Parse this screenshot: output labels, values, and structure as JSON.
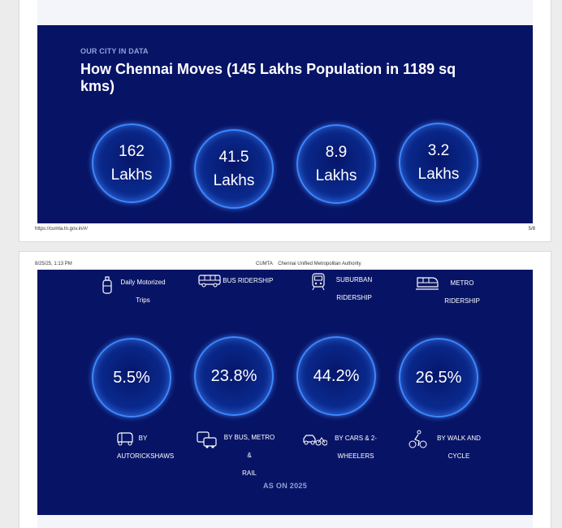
{
  "page1": {
    "eyebrow": "OUR CITY IN DATA",
    "title": "How Chennai Moves (145 Lakhs Population in 1189 sq kms)",
    "stats": [
      {
        "value": "162\nLakhs"
      },
      {
        "value": "41.5\nLakhs"
      },
      {
        "value": "8.9\nLakhs"
      },
      {
        "value": "3.2\nLakhs"
      }
    ],
    "footer_url": "https://cumta.tn.gov.in/#/",
    "page_number": "5/8"
  },
  "page2": {
    "header_date": "8/25/25, 1:13 PM",
    "header_title": "CUMTA    Chennai Unified Metropolitan Authority",
    "top_labels": [
      {
        "text": "Daily Motorized\nTrips",
        "icon": "gas-cylinder-icon"
      },
      {
        "text": "BUS RIDERSHIP",
        "icon": "bus-icon"
      },
      {
        "text": "SUBURBAN\nRIDERSHIP",
        "icon": "train-icon"
      },
      {
        "text": "METRO\nRIDERSHIP",
        "icon": "metro-train-icon"
      }
    ],
    "shares": [
      {
        "value": "5.5%"
      },
      {
        "value": "23.8%"
      },
      {
        "value": "44.2%"
      },
      {
        "value": "26.5%"
      }
    ],
    "bottom_labels": [
      {
        "text": "BY\nAUTORICKSHAWS",
        "icon": "autorickshaw-icon"
      },
      {
        "text": "BY BUS, METRO &\nRAIL",
        "icon": "bus-rail-icon"
      },
      {
        "text": "BY CARS & 2-\nWHEELERS",
        "icon": "car-bike-icon"
      },
      {
        "text": "BY WALK AND\nCYCLE",
        "icon": "cyclist-icon"
      }
    ],
    "as_on": "AS ON 2025"
  }
}
